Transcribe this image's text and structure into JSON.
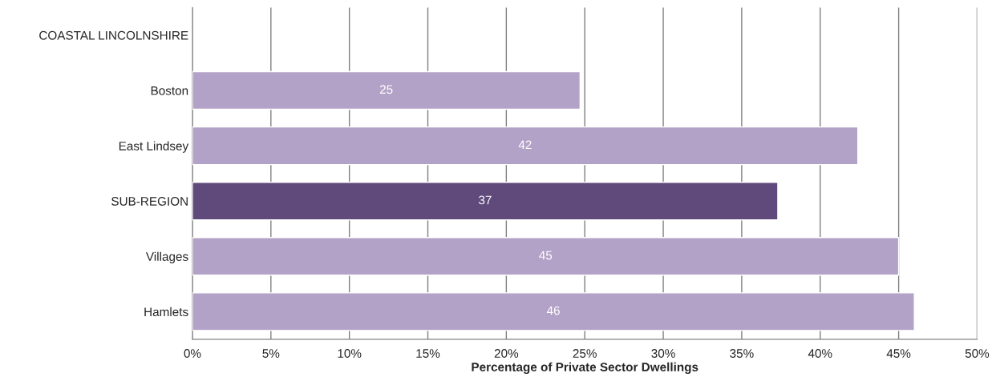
{
  "chart_data": {
    "type": "bar",
    "orientation": "horizontal",
    "xlabel": "Percentage of Private Sector Dwellings",
    "categories": [
      "COASTAL LINCOLNSHIRE",
      "Boston",
      "East Lindsey",
      "SUB-REGION",
      "Villages",
      "Hamlets"
    ],
    "values": [
      null,
      24.7,
      42.4,
      37.3,
      45.0,
      46.0
    ],
    "colors": [
      "#b3a2c7",
      "#b3a2c7",
      "#b3a2c7",
      "#604a7b",
      "#b3a2c7",
      "#b3a2c7"
    ],
    "value_labels": [
      null,
      "25",
      "42",
      "37",
      "45",
      "46"
    ],
    "xlim": [
      0,
      50
    ],
    "xticks": [
      {
        "value": 0,
        "label": "0%"
      },
      {
        "value": 5,
        "label": "5%"
      },
      {
        "value": 10,
        "label": "10%"
      },
      {
        "value": 15,
        "label": "15%"
      },
      {
        "value": 20,
        "label": "20%"
      },
      {
        "value": 25,
        "label": "25%"
      },
      {
        "value": 30,
        "label": "30%"
      },
      {
        "value": 35,
        "label": "35%"
      },
      {
        "value": 40,
        "label": "40%"
      },
      {
        "value": 45,
        "label": "45%"
      },
      {
        "value": 50,
        "label": "50%"
      }
    ],
    "grid": "x"
  }
}
